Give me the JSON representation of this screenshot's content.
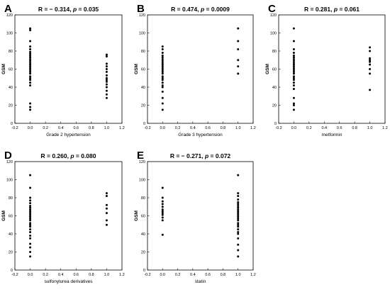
{
  "chart_data": [
    {
      "panel": "A",
      "type": "scatter",
      "title_prefix": "R = − 0.314, ",
      "p_symbol": "p",
      "title_suffix": " = 0.035",
      "xlabel": "Grade 2 hypertension",
      "ylabel": "GSM",
      "xlim": [
        -0.2,
        1.2
      ],
      "ylim": [
        0,
        120
      ],
      "xticks": [
        "-0.2",
        "0.0",
        "0.2",
        "0.4",
        "0.6",
        "0.8",
        "1.0",
        "1.2"
      ],
      "yticks": [
        "0",
        "20",
        "40",
        "60",
        "80",
        "100",
        "120"
      ],
      "points": [
        {
          "x": 0,
          "y": 15
        },
        {
          "x": 0,
          "y": 18
        },
        {
          "x": 0,
          "y": 22
        },
        {
          "x": 0,
          "y": 42
        },
        {
          "x": 0,
          "y": 45
        },
        {
          "x": 0,
          "y": 48
        },
        {
          "x": 0,
          "y": 50
        },
        {
          "x": 0,
          "y": 52
        },
        {
          "x": 0,
          "y": 55
        },
        {
          "x": 0,
          "y": 57
        },
        {
          "x": 0,
          "y": 59
        },
        {
          "x": 0,
          "y": 61
        },
        {
          "x": 0,
          "y": 63
        },
        {
          "x": 0,
          "y": 65
        },
        {
          "x": 0,
          "y": 67
        },
        {
          "x": 0,
          "y": 69
        },
        {
          "x": 0,
          "y": 71
        },
        {
          "x": 0,
          "y": 73
        },
        {
          "x": 0,
          "y": 75
        },
        {
          "x": 0,
          "y": 77
        },
        {
          "x": 0,
          "y": 79
        },
        {
          "x": 0,
          "y": 82
        },
        {
          "x": 0,
          "y": 85
        },
        {
          "x": 0,
          "y": 91
        },
        {
          "x": 0,
          "y": 103
        },
        {
          "x": 0,
          "y": 105
        },
        {
          "x": 1,
          "y": 28
        },
        {
          "x": 1,
          "y": 32
        },
        {
          "x": 1,
          "y": 36
        },
        {
          "x": 1,
          "y": 40
        },
        {
          "x": 1,
          "y": 43
        },
        {
          "x": 1,
          "y": 46
        },
        {
          "x": 1,
          "y": 48
        },
        {
          "x": 1,
          "y": 50
        },
        {
          "x": 1,
          "y": 53
        },
        {
          "x": 1,
          "y": 57
        },
        {
          "x": 1,
          "y": 60
        },
        {
          "x": 1,
          "y": 63
        },
        {
          "x": 1,
          "y": 66
        },
        {
          "x": 1,
          "y": 74
        },
        {
          "x": 1,
          "y": 76
        }
      ]
    },
    {
      "panel": "B",
      "type": "scatter",
      "title_prefix": "R = 0.474, ",
      "p_symbol": "p",
      "title_suffix": " = 0.0009",
      "xlabel": "Grade 3 hypertension",
      "ylabel": "GSM",
      "xlim": [
        -0.2,
        1.2
      ],
      "ylim": [
        0,
        120
      ],
      "xticks": [
        "-0.2",
        "0.0",
        "0.2",
        "0.4",
        "0.6",
        "0.8",
        "1.0",
        "1.2"
      ],
      "yticks": [
        "0",
        "20",
        "40",
        "60",
        "80",
        "100",
        "120"
      ],
      "points": [
        {
          "x": 0,
          "y": 15
        },
        {
          "x": 0,
          "y": 22
        },
        {
          "x": 0,
          "y": 28
        },
        {
          "x": 0,
          "y": 35
        },
        {
          "x": 0,
          "y": 40
        },
        {
          "x": 0,
          "y": 42
        },
        {
          "x": 0,
          "y": 45
        },
        {
          "x": 0,
          "y": 48
        },
        {
          "x": 0,
          "y": 50
        },
        {
          "x": 0,
          "y": 52
        },
        {
          "x": 0,
          "y": 55
        },
        {
          "x": 0,
          "y": 57
        },
        {
          "x": 0,
          "y": 59
        },
        {
          "x": 0,
          "y": 61
        },
        {
          "x": 0,
          "y": 63
        },
        {
          "x": 0,
          "y": 65
        },
        {
          "x": 0,
          "y": 67
        },
        {
          "x": 0,
          "y": 69
        },
        {
          "x": 0,
          "y": 71
        },
        {
          "x": 0,
          "y": 73
        },
        {
          "x": 0,
          "y": 75
        },
        {
          "x": 0,
          "y": 78
        },
        {
          "x": 0,
          "y": 82
        },
        {
          "x": 0,
          "y": 85
        },
        {
          "x": 1,
          "y": 55
        },
        {
          "x": 1,
          "y": 63
        },
        {
          "x": 1,
          "y": 70
        },
        {
          "x": 1,
          "y": 82
        },
        {
          "x": 1,
          "y": 91
        },
        {
          "x": 1,
          "y": 105
        }
      ]
    },
    {
      "panel": "C",
      "type": "scatter",
      "title_prefix": "R = 0.281, ",
      "p_symbol": "p",
      "title_suffix": " = 0.061",
      "xlabel": "metformin",
      "ylabel": "GSM",
      "xlim": [
        -0.2,
        1.2
      ],
      "ylim": [
        0,
        120
      ],
      "xticks": [
        "-0.2",
        "0.0",
        "0.2",
        "0.4",
        "0.6",
        "0.8",
        "1.0",
        "1.2"
      ],
      "yticks": [
        "0",
        "20",
        "40",
        "60",
        "80",
        "100",
        "120"
      ],
      "points": [
        {
          "x": 0,
          "y": 15
        },
        {
          "x": 0,
          "y": 20
        },
        {
          "x": 0,
          "y": 22
        },
        {
          "x": 0,
          "y": 28
        },
        {
          "x": 0,
          "y": 38
        },
        {
          "x": 0,
          "y": 42
        },
        {
          "x": 0,
          "y": 45
        },
        {
          "x": 0,
          "y": 48
        },
        {
          "x": 0,
          "y": 50
        },
        {
          "x": 0,
          "y": 52
        },
        {
          "x": 0,
          "y": 55
        },
        {
          "x": 0,
          "y": 57
        },
        {
          "x": 0,
          "y": 59
        },
        {
          "x": 0,
          "y": 61
        },
        {
          "x": 0,
          "y": 63
        },
        {
          "x": 0,
          "y": 65
        },
        {
          "x": 0,
          "y": 67
        },
        {
          "x": 0,
          "y": 69
        },
        {
          "x": 0,
          "y": 71
        },
        {
          "x": 0,
          "y": 73
        },
        {
          "x": 0,
          "y": 75
        },
        {
          "x": 0,
          "y": 78
        },
        {
          "x": 0,
          "y": 82
        },
        {
          "x": 0,
          "y": 91
        },
        {
          "x": 0,
          "y": 105
        },
        {
          "x": 1,
          "y": 37
        },
        {
          "x": 1,
          "y": 55
        },
        {
          "x": 1,
          "y": 60
        },
        {
          "x": 1,
          "y": 65
        },
        {
          "x": 1,
          "y": 68
        },
        {
          "x": 1,
          "y": 70
        },
        {
          "x": 1,
          "y": 72
        },
        {
          "x": 1,
          "y": 80
        },
        {
          "x": 1,
          "y": 84
        }
      ]
    },
    {
      "panel": "D",
      "type": "scatter",
      "title_prefix": "R = 0.260, ",
      "p_symbol": "p",
      "title_suffix": " = 0.080",
      "xlabel": "sulfonylurea derivatives",
      "ylabel": "GSM",
      "xlim": [
        -0.2,
        1.2
      ],
      "ylim": [
        0,
        120
      ],
      "xticks": [
        "-0.2",
        "0.0",
        "0.2",
        "0.4",
        "0.6",
        "0.8",
        "1.0",
        "1.2"
      ],
      "yticks": [
        "0",
        "20",
        "40",
        "60",
        "80",
        "100",
        "120"
      ],
      "points": [
        {
          "x": 0,
          "y": 15
        },
        {
          "x": 0,
          "y": 20
        },
        {
          "x": 0,
          "y": 25
        },
        {
          "x": 0,
          "y": 29
        },
        {
          "x": 0,
          "y": 35
        },
        {
          "x": 0,
          "y": 38
        },
        {
          "x": 0,
          "y": 42
        },
        {
          "x": 0,
          "y": 45
        },
        {
          "x": 0,
          "y": 48
        },
        {
          "x": 0,
          "y": 50
        },
        {
          "x": 0,
          "y": 52
        },
        {
          "x": 0,
          "y": 55
        },
        {
          "x": 0,
          "y": 57
        },
        {
          "x": 0,
          "y": 59
        },
        {
          "x": 0,
          "y": 61
        },
        {
          "x": 0,
          "y": 63
        },
        {
          "x": 0,
          "y": 65
        },
        {
          "x": 0,
          "y": 67
        },
        {
          "x": 0,
          "y": 69
        },
        {
          "x": 0,
          "y": 71
        },
        {
          "x": 0,
          "y": 74
        },
        {
          "x": 0,
          "y": 77
        },
        {
          "x": 0,
          "y": 80
        },
        {
          "x": 0,
          "y": 91
        },
        {
          "x": 0,
          "y": 105
        },
        {
          "x": 1,
          "y": 50
        },
        {
          "x": 1,
          "y": 55
        },
        {
          "x": 1,
          "y": 63
        },
        {
          "x": 1,
          "y": 68
        },
        {
          "x": 1,
          "y": 72
        },
        {
          "x": 1,
          "y": 82
        },
        {
          "x": 1,
          "y": 85
        }
      ]
    },
    {
      "panel": "E",
      "type": "scatter",
      "title_prefix": "R = − 0.271, ",
      "p_symbol": "p",
      "title_suffix": " = 0.072",
      "xlabel": "statin",
      "ylabel": "GSM",
      "xlim": [
        -0.2,
        1.2
      ],
      "ylim": [
        0,
        120
      ],
      "xticks": [
        "-0.2",
        "0.0",
        "0.2",
        "0.4",
        "0.6",
        "0.8",
        "1.0",
        "1.2"
      ],
      "yticks": [
        "0",
        "20",
        "40",
        "60",
        "80",
        "100",
        "120"
      ],
      "points": [
        {
          "x": 0,
          "y": 39
        },
        {
          "x": 0,
          "y": 55
        },
        {
          "x": 0,
          "y": 58
        },
        {
          "x": 0,
          "y": 61
        },
        {
          "x": 0,
          "y": 63
        },
        {
          "x": 0,
          "y": 65
        },
        {
          "x": 0,
          "y": 67
        },
        {
          "x": 0,
          "y": 70
        },
        {
          "x": 0,
          "y": 73
        },
        {
          "x": 0,
          "y": 76
        },
        {
          "x": 0,
          "y": 80
        },
        {
          "x": 0,
          "y": 91
        },
        {
          "x": 1,
          "y": 15
        },
        {
          "x": 1,
          "y": 22
        },
        {
          "x": 1,
          "y": 28
        },
        {
          "x": 1,
          "y": 35
        },
        {
          "x": 1,
          "y": 40
        },
        {
          "x": 1,
          "y": 42
        },
        {
          "x": 1,
          "y": 45
        },
        {
          "x": 1,
          "y": 48
        },
        {
          "x": 1,
          "y": 50
        },
        {
          "x": 1,
          "y": 52
        },
        {
          "x": 1,
          "y": 55
        },
        {
          "x": 1,
          "y": 57
        },
        {
          "x": 1,
          "y": 59
        },
        {
          "x": 1,
          "y": 61
        },
        {
          "x": 1,
          "y": 63
        },
        {
          "x": 1,
          "y": 65
        },
        {
          "x": 1,
          "y": 67
        },
        {
          "x": 1,
          "y": 69
        },
        {
          "x": 1,
          "y": 71
        },
        {
          "x": 1,
          "y": 73
        },
        {
          "x": 1,
          "y": 75
        },
        {
          "x": 1,
          "y": 78
        },
        {
          "x": 1,
          "y": 82
        },
        {
          "x": 1,
          "y": 85
        },
        {
          "x": 1,
          "y": 105
        }
      ]
    }
  ]
}
